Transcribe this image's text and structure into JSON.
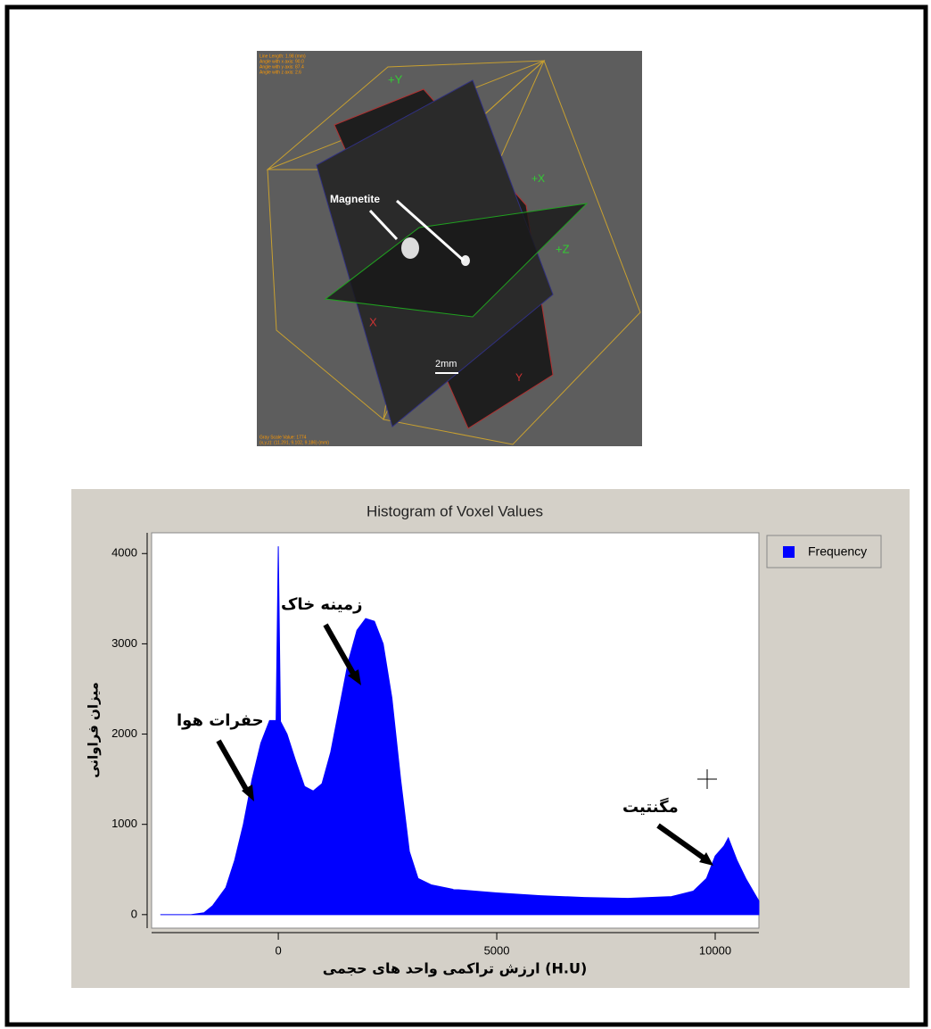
{
  "image": {
    "info_top": [
      "Line Length: 1.98 (mm)",
      "Angle with x axis: 90.0",
      "Angle with y axis: 87.4",
      "Angle with z axis: 2.6"
    ],
    "info_bottom": [
      "Gray Scale Value: 1774",
      "(x,y,z): (11.291, 9.102, 9.186) (mm)"
    ],
    "axis_labels": {
      "plus_y": "+Y",
      "plus_x": "+X",
      "plus_z": "+Z",
      "minus_x": "X",
      "minus_y": "Y"
    },
    "callout": "Magnetite",
    "scale_bar": "2mm"
  },
  "chart_data": {
    "type": "area",
    "title": "Histogram of Voxel Values",
    "xlabel": "ارزش تراکمی واحد های حجمی (H.U)",
    "ylabel": "میزان فراوانی",
    "x": [
      -2700,
      -2000,
      -1700,
      -1500,
      -1200,
      -1000,
      -800,
      -600,
      -400,
      -200,
      -50,
      0,
      50,
      200,
      400,
      600,
      800,
      1000,
      1200,
      1400,
      1600,
      1800,
      2000,
      2200,
      2400,
      2600,
      2800,
      3000,
      3200,
      3500,
      4000,
      5000,
      6000,
      7000,
      8000,
      9000,
      9500,
      9800,
      10000,
      10200,
      10300,
      10500,
      10700,
      11000
    ],
    "series": [
      {
        "name": "Frequency",
        "color": "#0000ff",
        "values": [
          0,
          0,
          20,
          100,
          300,
          600,
          1000,
          1500,
          1900,
          2150,
          2150,
          4080,
          2140,
          2000,
          1700,
          1420,
          1370,
          1450,
          1800,
          2300,
          2800,
          3150,
          3280,
          3250,
          3000,
          2400,
          1500,
          700,
          400,
          330,
          280,
          240,
          210,
          190,
          180,
          200,
          260,
          400,
          650,
          760,
          850,
          600,
          400,
          150
        ]
      }
    ],
    "xlim": [
      -2900,
      11000
    ],
    "ylim": [
      -150,
      4230
    ],
    "xticks": [
      0,
      5000,
      10000
    ],
    "yticks": [
      0,
      1000,
      2000,
      3000,
      4000
    ],
    "legend": "upper right",
    "annotations": [
      "زمینه خاک",
      "حفرات هوا",
      "مگنتیت"
    ]
  }
}
